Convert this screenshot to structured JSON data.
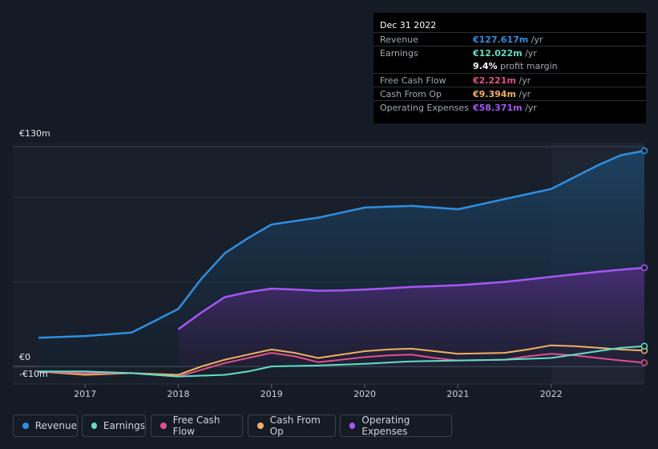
{
  "tooltip": {
    "date": "Dec 31 2022",
    "rows": [
      {
        "label": "Revenue",
        "value": "€127.617m",
        "unit": " /yr",
        "color": "#2e8fe0"
      },
      {
        "label": "Earnings",
        "value": "€12.022m",
        "unit": " /yr",
        "color": "#5ee0c8"
      },
      {
        "label": "",
        "value": "9.4%",
        "unit": " profit margin",
        "color": "#ffffff"
      },
      {
        "label": "Free Cash Flow",
        "value": "€2.221m",
        "unit": " /yr",
        "color": "#e0508a"
      },
      {
        "label": "Cash From Op",
        "value": "€9.394m",
        "unit": " /yr",
        "color": "#f0b060"
      },
      {
        "label": "Operating Expenses",
        "value": "€58.371m",
        "unit": " /yr",
        "color": "#a855f7"
      }
    ]
  },
  "legend": [
    {
      "label": "Revenue",
      "color": "#2e8fe0"
    },
    {
      "label": "Earnings",
      "color": "#5ee0c8"
    },
    {
      "label": "Free Cash Flow",
      "color": "#e0508a"
    },
    {
      "label": "Cash From Op",
      "color": "#f0b060"
    },
    {
      "label": "Operating Expenses",
      "color": "#a855f7"
    }
  ],
  "chart_data": {
    "type": "line",
    "title": "",
    "y_tick_labels": [
      "€130m",
      "€0",
      "-€10m"
    ],
    "ylim": [
      -10,
      130
    ],
    "xlim": [
      2016.5,
      2023.0
    ],
    "x_tick_labels": [
      "2017",
      "2018",
      "2019",
      "2020",
      "2021",
      "2022"
    ],
    "x_ticks": [
      2017,
      2018,
      2019,
      2020,
      2021,
      2022
    ],
    "highlight_from": 2022.0,
    "series": [
      {
        "name": "Revenue",
        "color": "#2e8fe0",
        "x": [
          2016.5,
          2017.0,
          2017.25,
          2017.5,
          2017.75,
          2018.0,
          2018.25,
          2018.5,
          2018.75,
          2019.0,
          2019.25,
          2019.5,
          2019.75,
          2020.0,
          2020.25,
          2020.5,
          2020.75,
          2021.0,
          2021.25,
          2021.5,
          2021.75,
          2022.0,
          2022.25,
          2022.5,
          2022.75,
          2023.0
        ],
        "values": [
          17,
          18,
          19,
          20,
          27,
          34,
          52,
          67,
          76,
          84,
          86,
          88,
          91,
          94,
          94.5,
          95,
          94,
          93,
          96,
          99,
          102,
          105,
          112,
          119,
          125,
          127.6
        ]
      },
      {
        "name": "Operating Expenses",
        "color": "#a855f7",
        "x": [
          2018.0,
          2018.25,
          2018.5,
          2018.75,
          2019.0,
          2019.25,
          2019.5,
          2019.75,
          2020.0,
          2020.25,
          2020.5,
          2020.75,
          2021.0,
          2021.25,
          2021.5,
          2021.75,
          2022.0,
          2022.25,
          2022.5,
          2022.75,
          2023.0
        ],
        "values": [
          22,
          32,
          41,
          44,
          46,
          45.5,
          44.8,
          45,
          45.5,
          46.2,
          47,
          47.5,
          48,
          49,
          50,
          51.5,
          53,
          54.5,
          56,
          57.2,
          58.4
        ]
      },
      {
        "name": "Cash From Op",
        "color": "#f0b060",
        "x": [
          2016.5,
          2017.0,
          2017.5,
          2018.0,
          2018.25,
          2018.5,
          2018.75,
          2019.0,
          2019.25,
          2019.5,
          2019.75,
          2020.0,
          2020.25,
          2020.5,
          2020.75,
          2021.0,
          2021.5,
          2021.75,
          2022.0,
          2022.25,
          2022.5,
          2022.75,
          2023.0
        ],
        "values": [
          -3,
          -5,
          -4,
          -5,
          0,
          4,
          7,
          10,
          8,
          5,
          7,
          9,
          10,
          10.5,
          9,
          7.5,
          8,
          10,
          12.5,
          12,
          11,
          10,
          9.4
        ]
      },
      {
        "name": "Free Cash Flow",
        "color": "#e0508a",
        "x": [
          2016.5,
          2017.0,
          2017.5,
          2018.0,
          2018.25,
          2018.5,
          2018.75,
          2019.0,
          2019.25,
          2019.5,
          2019.75,
          2020.0,
          2020.25,
          2020.5,
          2020.75,
          2021.0,
          2021.5,
          2021.75,
          2022.0,
          2022.25,
          2022.5,
          2022.75,
          2023.0
        ],
        "values": [
          -3,
          -4,
          -4,
          -6,
          -2,
          2,
          5,
          8,
          6,
          2.5,
          4,
          5.5,
          6.5,
          7,
          5,
          3.5,
          4,
          6,
          7.5,
          6.5,
          5,
          3.5,
          2.2
        ]
      },
      {
        "name": "Earnings",
        "color": "#5ee0c8",
        "x": [
          2016.5,
          2017.0,
          2017.5,
          2018.0,
          2018.5,
          2018.75,
          2019.0,
          2019.5,
          2020.0,
          2020.5,
          2021.0,
          2021.5,
          2022.0,
          2022.25,
          2022.5,
          2022.75,
          2023.0
        ],
        "values": [
          -3,
          -3,
          -4,
          -6,
          -5,
          -3,
          0,
          0.5,
          1.5,
          3,
          3.5,
          4,
          5,
          7,
          9,
          11,
          12
        ]
      }
    ]
  }
}
